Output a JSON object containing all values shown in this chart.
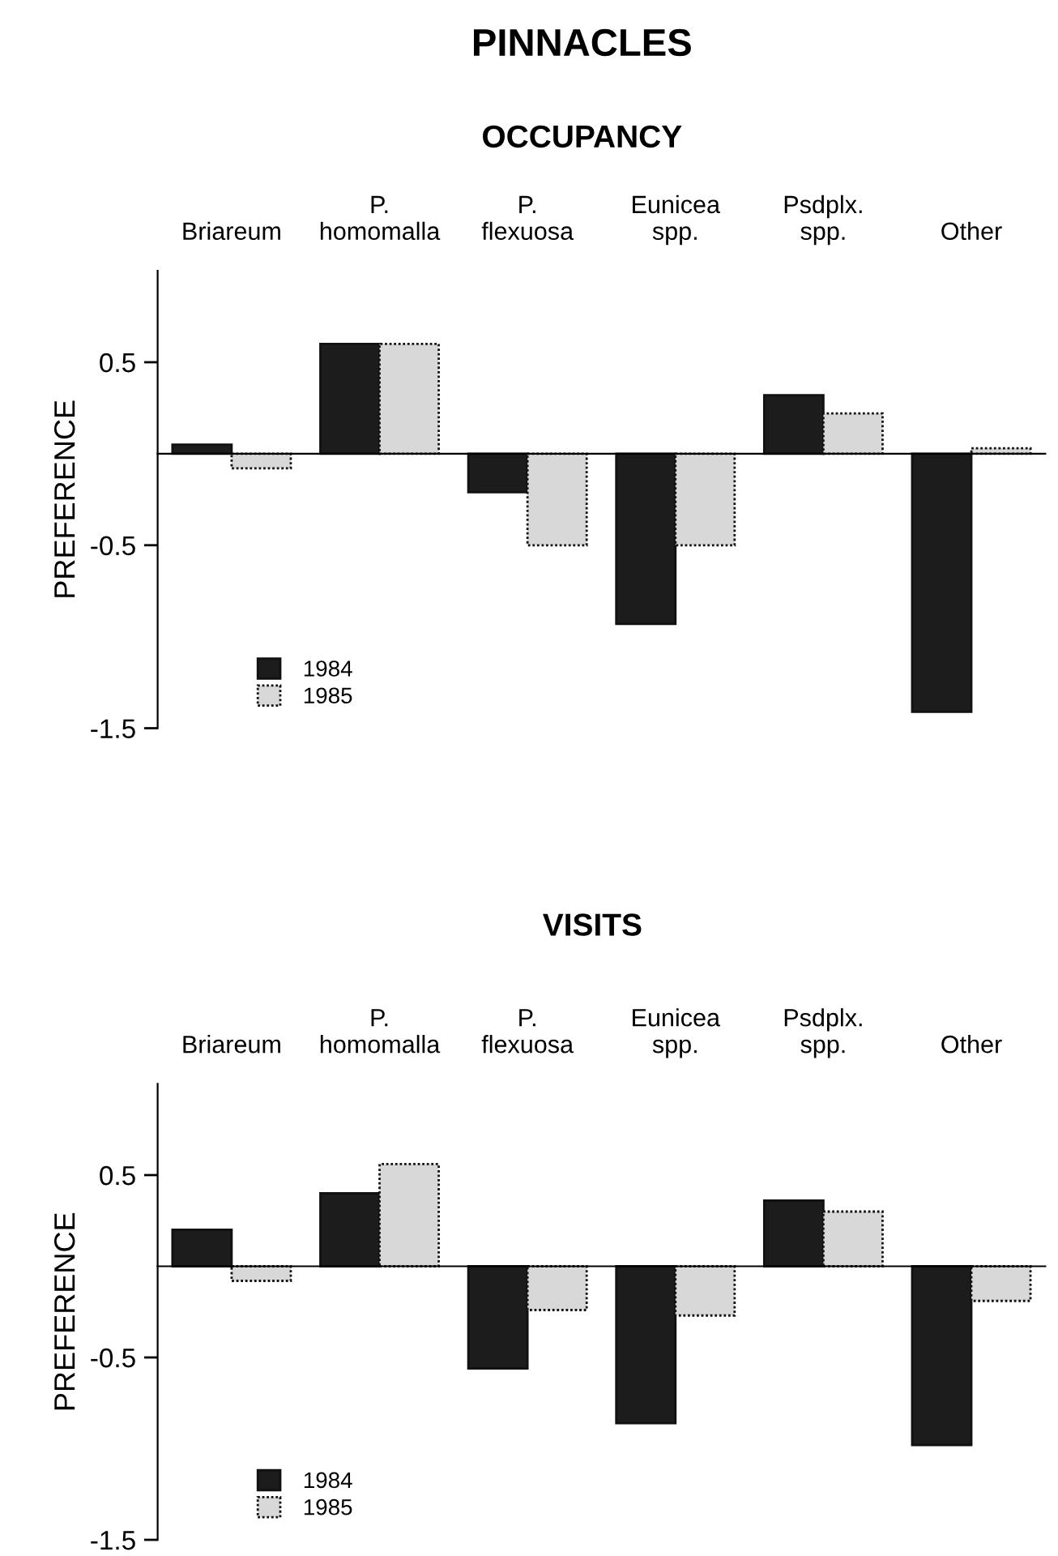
{
  "chart_data": [
    {
      "type": "bar",
      "title": "PINNACLES",
      "subtitle": "OCCUPANCY",
      "ylabel": "PREFERENCE",
      "categories": [
        "Briareum",
        "P.\nhomomalla",
        "P.\nflexuosa",
        "Eunicea\nspp.",
        "Psdplx.\nspp.",
        "Other"
      ],
      "series": [
        {
          "name": "1984",
          "color": "#1c1c1c",
          "values": [
            0.05,
            0.6,
            -0.21,
            -0.93,
            0.32,
            -1.41
          ]
        },
        {
          "name": "1985",
          "color": "#d8d8d8",
          "values": [
            -0.08,
            0.6,
            -0.5,
            -0.5,
            0.22,
            0.03
          ]
        }
      ],
      "ylim": [
        -1.5,
        1
      ],
      "yticks": [
        0.5,
        -0.5,
        -1.5
      ],
      "legend": "bottom left"
    },
    {
      "type": "bar",
      "title": "VISITS",
      "ylabel": "PREFERENCE",
      "categories": [
        "Briareum",
        "P.\nhomomalla",
        "P.\nflexuosa",
        "Eunicea\nspp.",
        "Psdplx.\nspp.",
        "Other"
      ],
      "series": [
        {
          "name": "1984",
          "color": "#1c1c1c",
          "values": [
            0.2,
            0.4,
            -0.56,
            -0.86,
            0.36,
            -0.98
          ]
        },
        {
          "name": "1985",
          "color": "#d8d8d8",
          "values": [
            -0.08,
            0.56,
            -0.24,
            -0.27,
            0.3,
            -0.19
          ]
        }
      ],
      "ylim": [
        -1.5,
        1
      ],
      "yticks": [
        0.5,
        -0.5,
        -1.5
      ],
      "legend": "bottom left"
    }
  ]
}
